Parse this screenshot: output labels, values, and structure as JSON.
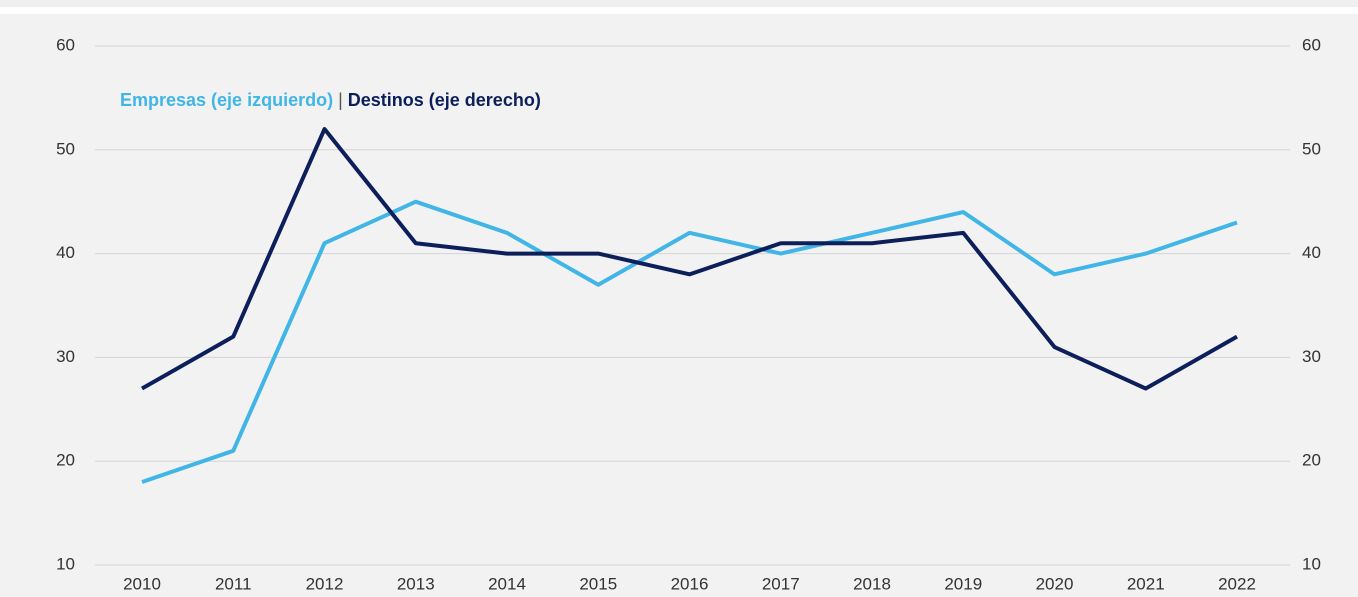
{
  "chart_data": {
    "type": "line",
    "x": [
      "2010",
      "2011",
      "2012",
      "2013",
      "2014",
      "2015",
      "2016",
      "2017",
      "2018",
      "2019",
      "2020",
      "2021",
      "2022"
    ],
    "series": [
      {
        "name": "Empresas (eje izquierdo)",
        "color": "#41b6e6",
        "axis": "y",
        "values": [
          18,
          21,
          41,
          45,
          42,
          37,
          42,
          40,
          42,
          44,
          38,
          40,
          43
        ]
      },
      {
        "name": "Destinos (eje derecho)",
        "color": "#0c1f5b",
        "axis": "y2",
        "values": [
          27,
          32,
          52,
          41,
          40,
          40,
          38,
          41,
          41,
          42,
          31,
          27,
          32
        ]
      }
    ],
    "legend_separator": "|",
    "ylim": [
      10,
      60
    ],
    "yticks": [
      10,
      20,
      30,
      40,
      50,
      60
    ],
    "y2lim": [
      10,
      60
    ],
    "y2ticks": [
      10,
      20,
      30,
      40,
      50,
      60
    ],
    "grid": true
  }
}
